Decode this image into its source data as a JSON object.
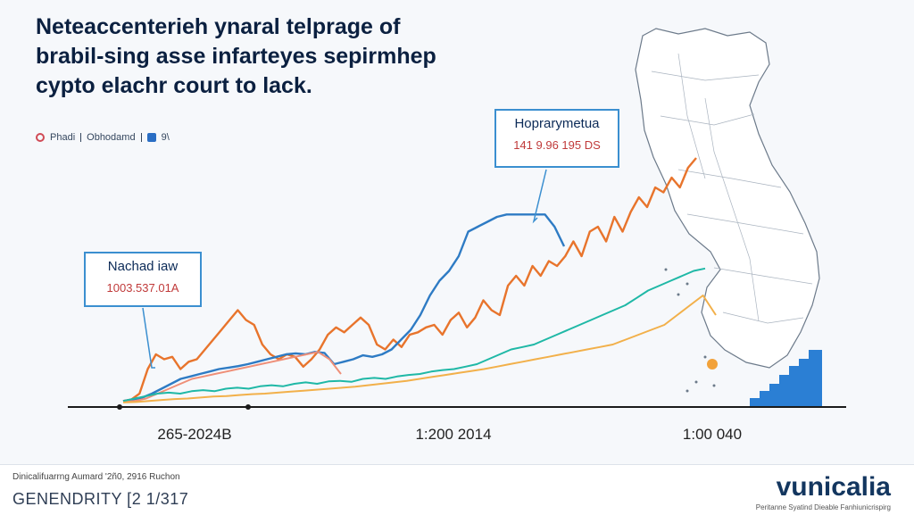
{
  "title": {
    "line1": "Neteaccenterieh ynaral telprage of",
    "line2": "brabil-sing asse infarteyes sepirmhep",
    "line3": "cypto elachr court to lack."
  },
  "legend": {
    "item1": "Phadi",
    "item2": "Obhodamd",
    "item3": "9\\"
  },
  "callouts": {
    "left": {
      "title": "Nachad iaw",
      "value": "1003.537.01A"
    },
    "right": {
      "title": "Hoprarymetua",
      "value": "141 9.96 195 DS"
    }
  },
  "x_ticks": [
    "265-2024B",
    "1:200 2014",
    "1:00 040"
  ],
  "footer": {
    "note": "Dinicalifuarrng Aumard '2ñ0, 2916 Ruchon",
    "code": "GENENDRITY [2 1/317",
    "brand": "vunicalia",
    "tagline": "Peritanne Syatind Dieable Fanhiunicrispirg"
  },
  "colors": {
    "orange": "#e8742c",
    "blue": "#2e7bc4",
    "salmon": "#ef8f78",
    "teal": "#1fb8a6",
    "gold": "#f2b04a",
    "map_bars": "#2b7fd4"
  },
  "chart_data": {
    "type": "line",
    "series": [
      {
        "color": "orange",
        "values": [
          0.5,
          0.8,
          2,
          7,
          10,
          9,
          9.5,
          7,
          8.5,
          9,
          11,
          13,
          15,
          17,
          19,
          17,
          16,
          12,
          10,
          9,
          10,
          9.5,
          7.5,
          9,
          11,
          14,
          15.5,
          14.5,
          16,
          17.5,
          16,
          12,
          11,
          13,
          11.5,
          14,
          14.5,
          15.5,
          16,
          14,
          17,
          18.5,
          15.5,
          17.5,
          21,
          19,
          18,
          24,
          26,
          24,
          28,
          26,
          29,
          28,
          30,
          33,
          30,
          35,
          36,
          33,
          38,
          35,
          39,
          42,
          40,
          44,
          43,
          46,
          44,
          48,
          50
        ]
      },
      {
        "color": "blue",
        "values": [
          0.5,
          0.8,
          1.2,
          2,
          3,
          4,
          5,
          5.5,
          6,
          6.5,
          7,
          7.3,
          7.6,
          8,
          8.5,
          9,
          9.5,
          10,
          10.2,
          10,
          10.5,
          10.3,
          8,
          8.5,
          9,
          9.8,
          9.5,
          10,
          11,
          13,
          15,
          18,
          22,
          25,
          27,
          30,
          35,
          36,
          37,
          38,
          38.5,
          38.5,
          38.5,
          38.5,
          38.5,
          36,
          32
        ]
      },
      {
        "color": "salmon",
        "values": [
          0.3,
          0.5,
          1,
          2,
          3,
          4,
          5,
          5.5,
          6,
          6.5,
          7,
          7.5,
          8,
          8.5,
          9,
          9.5,
          10,
          10.5,
          9,
          6
        ]
      },
      {
        "color": "teal",
        "values": [
          0.5,
          1,
          1.5,
          2,
          2.2,
          2,
          2.5,
          2.7,
          2.5,
          3,
          3.2,
          3,
          3.5,
          3.7,
          3.5,
          4,
          4.3,
          4,
          4.5,
          4.6,
          4.4,
          5,
          5.2,
          5,
          5.5,
          5.8,
          6,
          6.5,
          6.8,
          7,
          7.5,
          8,
          9,
          10,
          11,
          11.5,
          12,
          13,
          14,
          15,
          16,
          17,
          18,
          19,
          20,
          21.5,
          23,
          24,
          25,
          26,
          27,
          27.5
        ]
      },
      {
        "color": "gold",
        "values": [
          0.2,
          0.3,
          0.5,
          0.7,
          0.9,
          1,
          1.2,
          1.4,
          1.5,
          1.7,
          1.9,
          2,
          2.2,
          2.4,
          2.6,
          2.8,
          3,
          3.2,
          3.4,
          3.7,
          4,
          4.3,
          4.6,
          5,
          5.4,
          5.8,
          6.2,
          6.6,
          7,
          7.5,
          8,
          8.5,
          9,
          9.5,
          10,
          10.5,
          11,
          11.5,
          12,
          13,
          14,
          15,
          16,
          18,
          20,
          22,
          18
        ]
      }
    ]
  }
}
